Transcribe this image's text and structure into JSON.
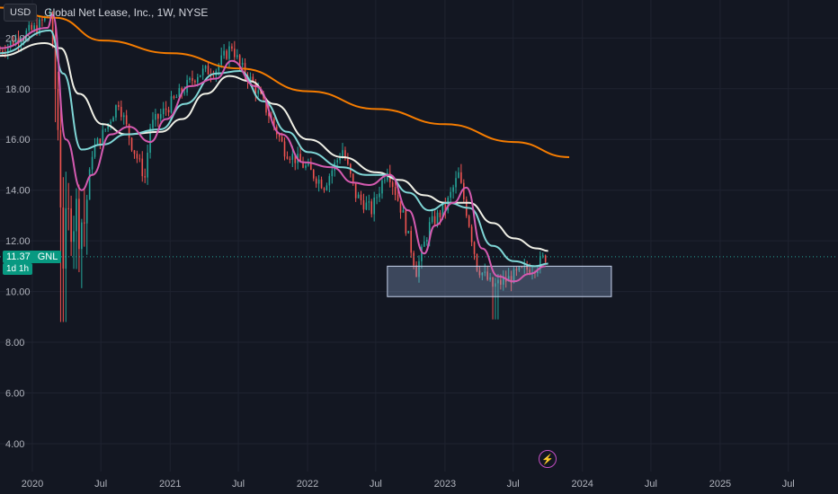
{
  "header": {
    "currency_label": "USD",
    "title": "Global Net Lease, Inc., 1W, NYSE"
  },
  "last_price": {
    "value": "11.37",
    "symbol": "GNL",
    "countdown": "1d 1h"
  },
  "colors": {
    "background": "#131722",
    "grid": "#1f2330",
    "candle_up": "#26a69a",
    "candle_down": "#ef5350",
    "ma_orange": "#f57c00",
    "ma_white": "#f0f0e6",
    "ma_cyan": "#7fd6d6",
    "ma_pink": "#d45ab0",
    "rectangle": "#8aa0c8"
  },
  "icons": {
    "alert": "lightning-bolt-icon"
  },
  "chart_data": {
    "type": "candlestick",
    "title": "Global Net Lease, Inc., 1W, NYSE",
    "y_range": [
      2.9,
      21.5
    ],
    "x_range": [
      "2019-10-07",
      "2025-11-10"
    ],
    "y_ticks": [
      "20.00",
      "18.00",
      "16.00",
      "14.00",
      "12.00",
      "10.00",
      "8.00",
      "6.00",
      "4.00"
    ],
    "x_ticks": [
      {
        "label": "2020",
        "date": "2020-01-01"
      },
      {
        "label": "Jul",
        "date": "2020-07-01"
      },
      {
        "label": "2021",
        "date": "2021-01-01"
      },
      {
        "label": "Jul",
        "date": "2021-07-01"
      },
      {
        "label": "2022",
        "date": "2022-01-01"
      },
      {
        "label": "Jul",
        "date": "2022-07-01"
      },
      {
        "label": "2023",
        "date": "2023-01-01"
      },
      {
        "label": "Jul",
        "date": "2023-07-01"
      },
      {
        "label": "2024",
        "date": "2024-01-01"
      },
      {
        "label": "Jul",
        "date": "2024-07-01"
      },
      {
        "label": "2025",
        "date": "2025-01-01"
      },
      {
        "label": "Jul",
        "date": "2025-07-01"
      }
    ],
    "close_path": [
      [
        "2019-10-07",
        19.5
      ],
      [
        "2019-12-02",
        20.1
      ],
      [
        "2020-01-13",
        20.4
      ],
      [
        "2020-02-17",
        21.0
      ],
      [
        "2020-03-09",
        16.5
      ],
      [
        "2020-03-23",
        11.5
      ],
      [
        "2020-04-13",
        13.2
      ],
      [
        "2020-05-18",
        12.8
      ],
      [
        "2020-06-08",
        15.5
      ],
      [
        "2020-07-06",
        16.2
      ],
      [
        "2020-08-17",
        17.5
      ],
      [
        "2020-09-21",
        15.8
      ],
      [
        "2020-10-26",
        14.5
      ],
      [
        "2020-11-09",
        16.5
      ],
      [
        "2020-12-21",
        17.2
      ],
      [
        "2021-02-08",
        18.0
      ],
      [
        "2021-03-15",
        18.6
      ],
      [
        "2021-05-03",
        18.8
      ],
      [
        "2021-06-14",
        19.7
      ],
      [
        "2021-07-05",
        18.9
      ],
      [
        "2021-08-09",
        18.2
      ],
      [
        "2021-09-20",
        17.0
      ],
      [
        "2021-11-01",
        15.6
      ],
      [
        "2021-12-27",
        14.9
      ],
      [
        "2022-02-14",
        14.2
      ],
      [
        "2022-04-04",
        15.6
      ],
      [
        "2022-05-09",
        13.8
      ],
      [
        "2022-06-20",
        13.2
      ],
      [
        "2022-08-01",
        14.9
      ],
      [
        "2022-09-12",
        13.0
      ],
      [
        "2022-10-17",
        10.8
      ],
      [
        "2022-11-21",
        12.6
      ],
      [
        "2023-01-02",
        13.3
      ],
      [
        "2023-02-06",
        14.6
      ],
      [
        "2023-03-06",
        12.7
      ],
      [
        "2023-03-27",
        11.0
      ],
      [
        "2023-05-08",
        10.2
      ],
      [
        "2023-06-19",
        10.5
      ],
      [
        "2023-07-24",
        10.8
      ],
      [
        "2023-08-28",
        11.0
      ],
      [
        "2023-09-25",
        11.37
      ]
    ],
    "series": [
      {
        "color_key": "ma_orange",
        "points": [
          [
            "2019-10-07",
            21.2
          ],
          [
            "2020-03-02",
            20.8
          ],
          [
            "2020-07-06",
            19.9
          ],
          [
            "2021-01-04",
            19.4
          ],
          [
            "2021-07-05",
            18.8
          ],
          [
            "2022-01-03",
            17.9
          ],
          [
            "2022-07-04",
            17.2
          ],
          [
            "2023-01-02",
            16.6
          ],
          [
            "2023-07-03",
            15.9
          ],
          [
            "2023-11-27",
            15.3
          ]
        ]
      },
      {
        "color_key": "ma_white",
        "points": [
          [
            "2019-10-07",
            19.3
          ],
          [
            "2020-02-03",
            19.8
          ],
          [
            "2020-03-16",
            19.6
          ],
          [
            "2020-05-04",
            17.8
          ],
          [
            "2020-07-06",
            16.6
          ],
          [
            "2020-09-07",
            16.2
          ],
          [
            "2020-12-07",
            16.3
          ],
          [
            "2021-02-01",
            16.8
          ],
          [
            "2021-04-05",
            17.8
          ],
          [
            "2021-06-07",
            18.5
          ],
          [
            "2021-08-02",
            18.3
          ],
          [
            "2021-10-04",
            17.4
          ],
          [
            "2022-01-03",
            16.0
          ],
          [
            "2022-04-04",
            15.3
          ],
          [
            "2022-07-04",
            14.7
          ],
          [
            "2022-09-05",
            14.4
          ],
          [
            "2022-11-07",
            13.8
          ],
          [
            "2023-01-02",
            13.5
          ],
          [
            "2023-03-06",
            13.5
          ],
          [
            "2023-05-08",
            12.7
          ],
          [
            "2023-07-03",
            12.1
          ],
          [
            "2023-09-04",
            11.7
          ],
          [
            "2023-10-02",
            11.6
          ]
        ]
      },
      {
        "color_key": "ma_cyan",
        "points": [
          [
            "2019-10-07",
            19.4
          ],
          [
            "2020-02-17",
            20.3
          ],
          [
            "2020-03-23",
            18.6
          ],
          [
            "2020-05-11",
            15.6
          ],
          [
            "2020-07-06",
            15.8
          ],
          [
            "2020-09-07",
            16.2
          ],
          [
            "2020-12-07",
            16.4
          ],
          [
            "2021-02-08",
            17.4
          ],
          [
            "2021-05-03",
            18.6
          ],
          [
            "2021-07-05",
            18.7
          ],
          [
            "2021-09-06",
            17.5
          ],
          [
            "2021-11-08",
            16.3
          ],
          [
            "2022-01-03",
            15.5
          ],
          [
            "2022-04-04",
            14.9
          ],
          [
            "2022-06-06",
            14.6
          ],
          [
            "2022-08-01",
            14.6
          ],
          [
            "2022-09-26",
            13.9
          ],
          [
            "2022-11-21",
            13.2
          ],
          [
            "2023-01-09",
            13.5
          ],
          [
            "2023-03-06",
            13.3
          ],
          [
            "2023-05-08",
            11.8
          ],
          [
            "2023-07-03",
            11.2
          ],
          [
            "2023-08-28",
            11.0
          ],
          [
            "2023-10-02",
            11.1
          ]
        ]
      },
      {
        "color_key": "ma_pink",
        "points": [
          [
            "2019-10-07",
            19.6
          ],
          [
            "2020-02-10",
            20.4
          ],
          [
            "2020-02-24",
            20.9
          ],
          [
            "2020-03-30",
            16.0
          ],
          [
            "2020-05-11",
            14.0
          ],
          [
            "2020-06-08",
            14.6
          ],
          [
            "2020-07-27",
            16.2
          ],
          [
            "2020-09-14",
            16.5
          ],
          [
            "2020-11-09",
            15.9
          ],
          [
            "2020-12-21",
            16.8
          ],
          [
            "2021-02-22",
            18.1
          ],
          [
            "2021-05-03",
            18.4
          ],
          [
            "2021-06-14",
            19.1
          ],
          [
            "2021-08-16",
            18.1
          ],
          [
            "2021-10-25",
            16.2
          ],
          [
            "2021-12-20",
            15.1
          ],
          [
            "2022-03-07",
            14.9
          ],
          [
            "2022-05-02",
            14.3
          ],
          [
            "2022-06-13",
            14.2
          ],
          [
            "2022-08-08",
            14.6
          ],
          [
            "2022-09-26",
            13.2
          ],
          [
            "2022-11-07",
            11.5
          ],
          [
            "2022-12-05",
            12.6
          ],
          [
            "2023-01-23",
            13.5
          ],
          [
            "2023-02-27",
            14.1
          ],
          [
            "2023-04-10",
            11.7
          ],
          [
            "2023-05-22",
            10.6
          ],
          [
            "2023-07-03",
            10.4
          ],
          [
            "2023-08-14",
            10.7
          ],
          [
            "2023-09-25",
            11.0
          ]
        ]
      }
    ],
    "rectangle": {
      "start": "2022-08-01",
      "end": "2024-03-18",
      "top": 11.0,
      "bottom": 9.8
    },
    "last_price_line": 11.37
  }
}
